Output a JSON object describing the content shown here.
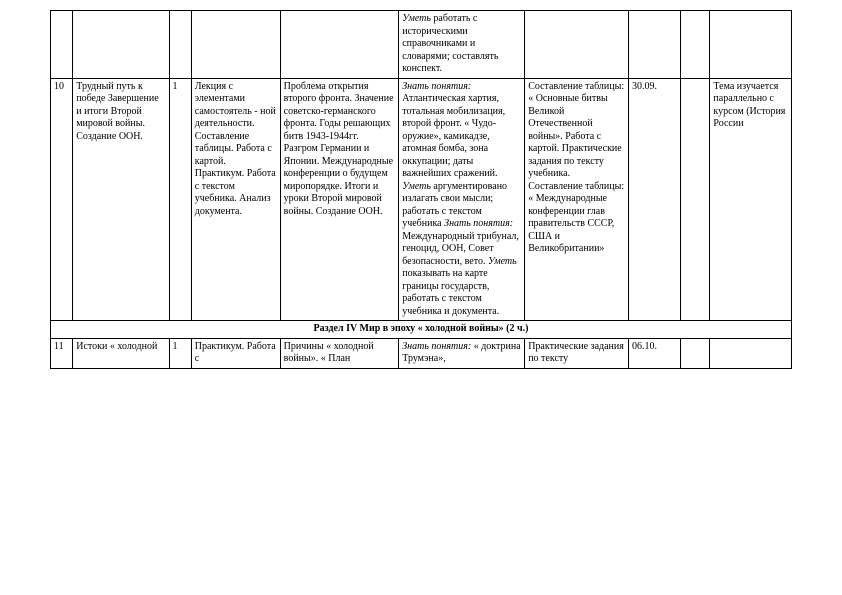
{
  "rows": {
    "r0": {
      "c5": "<em>Уметь</em> работать с историческими справочниками и словарями; составлять конспект."
    },
    "r1": {
      "c0": "10",
      "c1": "Трудный путь к победе Завершение и итоги Второй мировой войны. Создание ООН.",
      "c2": "1",
      "c3": "Лекция с элементами самостоятель - ной деятельности. Составление таблицы. Работа с картой. Практикум. Работа с текстом учебника. Анализ документа.",
      "c4": "Проблема открытия второго фронта. Значение советско-германского фронта. Годы решающих битв 1943-1944гг. Разгром Германии и Японии. Международные конференции о будущем миропорядке. Итоги и уроки Второй мировой войны. Создание ООН.",
      "c5": "<em>Знать понятия:</em> Атлантическая хартия, тотальная мобилизация, второй фронт. « Чудо-оружие», камикадзе, атомная бомба, зона оккупации; даты важнейших сражений. <em>Уметь</em> аргументировано излагать свои мысли; работать с текстом учебника <em>Знать понятия:</em> Международный трибунал, геноцид, ООН, Совет безопасности, вето. <em>Уметь</em> показывать на карте границы государств, работать с текстом учебника и документа.",
      "c6": "Составление таблицы: « Основные битвы Великой Отечественной войны». Работа с картой. Практические задания по тексту учебника. Составление таблицы: « Международные конференции глав правительств СССР, США и Великобритании»",
      "c7": "30.09.",
      "c9": "Тема изучается параллельно с курсом (История России"
    },
    "section": "Раздел   IV    Мир в эпоху « холодной войны» (2 ч.)",
    "r2": {
      "c0": "11",
      "c1": "Истоки « холодной",
      "c2": "1",
      "c3": "Практикум. Работа с",
      "c4": "Причины « холодной войны». « План",
      "c5": "<em>Знать понятия:</em> « доктрина Трумэна»,",
      "c6": "Практические задания по тексту",
      "c7": "06.10."
    }
  },
  "style": {
    "font_family": "Times New Roman",
    "font_size_pt": 10,
    "border_color": "#000000",
    "background": "#ffffff",
    "text_color": "#000000"
  }
}
